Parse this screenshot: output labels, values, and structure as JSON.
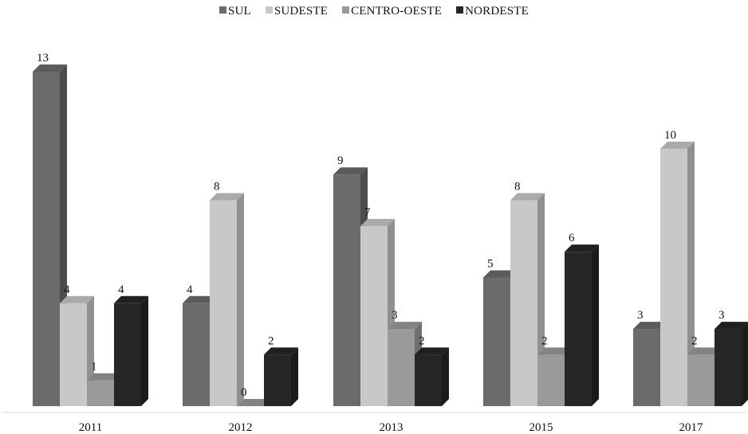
{
  "chart_data": {
    "type": "bar",
    "title": "",
    "xlabel": "",
    "ylabel": "",
    "categories": [
      "2011",
      "2012",
      "2013",
      "2015",
      "2017"
    ],
    "series": [
      {
        "name": "SUL",
        "values": [
          13,
          4,
          9,
          5,
          3
        ],
        "color": "#6b6b6b"
      },
      {
        "name": "SUDESTE",
        "values": [
          4,
          8,
          7,
          8,
          10
        ],
        "color": "#c8c8c8"
      },
      {
        "name": "CENTRO-OESTE",
        "values": [
          1,
          0,
          3,
          2,
          2
        ],
        "color": "#9a9a9a"
      },
      {
        "name": "NORDESTE",
        "values": [
          4,
          2,
          2,
          6,
          3
        ],
        "color": "#262626"
      }
    ],
    "ylim": [
      0,
      14
    ],
    "grid": false,
    "legend": "top-center",
    "style": "3d-clustered-column"
  }
}
